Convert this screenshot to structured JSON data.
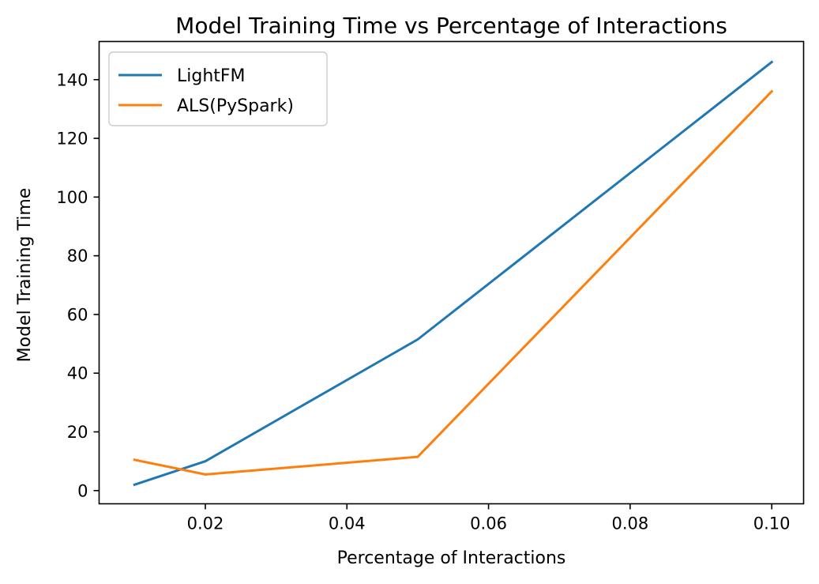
{
  "chart_data": {
    "type": "line",
    "title": "Model Training Time vs Percentage of Interactions",
    "xlabel": "Percentage of Interactions",
    "ylabel": "Model Training Time",
    "xlim": [
      0.005,
      0.1045
    ],
    "ylim": [
      -4.5,
      153
    ],
    "xticks": [
      0.02,
      0.04,
      0.06,
      0.08,
      0.1
    ],
    "xtick_labels": [
      "0.02",
      "0.04",
      "0.06",
      "0.08",
      "0.10"
    ],
    "yticks": [
      0,
      20,
      40,
      60,
      80,
      100,
      120,
      140
    ],
    "ytick_labels": [
      "0",
      "20",
      "40",
      "60",
      "80",
      "100",
      "120",
      "140"
    ],
    "grid": false,
    "legend_position": "upper-left",
    "series": [
      {
        "name": "LightFM",
        "color": "#1f77b4",
        "x": [
          0.01,
          0.02,
          0.05,
          0.1
        ],
        "y": [
          2,
          10,
          51.5,
          146
        ]
      },
      {
        "name": "ALS(PySpark)",
        "color": "#ff7f0e",
        "x": [
          0.01,
          0.02,
          0.05,
          0.1
        ],
        "y": [
          10.5,
          5.5,
          11.5,
          136
        ]
      }
    ]
  }
}
